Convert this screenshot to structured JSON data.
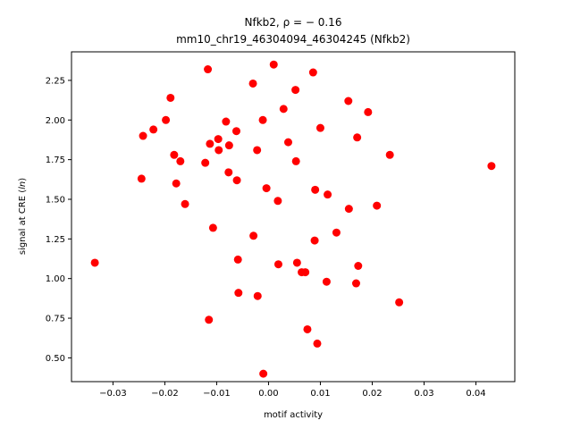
{
  "chart_data": {
    "type": "scatter",
    "title_line1": "Nfkb2, ρ = − 0.16",
    "title_line2": "mm10_chr19_46304094_46304245 (Nfkb2)",
    "xlabel": "motif activity",
    "ylabel_prefix": "signal at CRE (",
    "ylabel_italic": "ln",
    "ylabel_suffix": ")",
    "xlim": [
      -0.038,
      0.0475
    ],
    "ylim": [
      0.35,
      2.43
    ],
    "xticks": [
      -0.03,
      -0.02,
      -0.01,
      0.0,
      0.01,
      0.02,
      0.03,
      0.04
    ],
    "xtick_labels": [
      "−0.03",
      "−0.02",
      "−0.01",
      "0.00",
      "0.01",
      "0.02",
      "0.03",
      "0.04"
    ],
    "yticks": [
      0.5,
      0.75,
      1.0,
      1.25,
      1.5,
      1.75,
      2.0,
      2.25
    ],
    "ytick_labels": [
      "0.50",
      "0.75",
      "1.00",
      "1.25",
      "1.50",
      "1.75",
      "2.00",
      "2.25"
    ],
    "marker_color": "#ff0000",
    "grid": false,
    "x": [
      -0.0335,
      -0.0245,
      -0.0242,
      -0.0222,
      -0.0198,
      -0.0189,
      -0.0182,
      -0.0178,
      -0.017,
      -0.0161,
      -0.0122,
      -0.0117,
      -0.0115,
      -0.0113,
      -0.0107,
      -0.0097,
      -0.0096,
      -0.0082,
      -0.0077,
      -0.0076,
      -0.0062,
      -0.0061,
      -0.0059,
      -0.0058,
      -0.003,
      -0.0029,
      -0.0022,
      -0.0021,
      -0.0011,
      -0.001,
      -0.0004,
      0.001,
      0.0018,
      0.0019,
      0.0029,
      0.0038,
      0.0052,
      0.0053,
      0.0055,
      0.0064,
      0.0071,
      0.0075,
      0.0086,
      0.0089,
      0.009,
      0.0094,
      0.01,
      0.0112,
      0.0114,
      0.0131,
      0.0154,
      0.0155,
      0.0169,
      0.0171,
      0.0173,
      0.0192,
      0.0209,
      0.0234,
      0.0252,
      0.043
    ],
    "y": [
      1.1,
      1.63,
      1.9,
      1.94,
      2.0,
      2.14,
      1.78,
      1.6,
      1.74,
      1.47,
      1.73,
      2.32,
      0.74,
      1.85,
      1.32,
      1.88,
      1.81,
      1.99,
      1.67,
      1.84,
      1.93,
      1.62,
      1.12,
      0.91,
      2.23,
      1.27,
      1.81,
      0.89,
      2.0,
      0.4,
      1.57,
      2.35,
      1.49,
      1.09,
      2.07,
      1.86,
      2.19,
      1.74,
      1.1,
      1.04,
      1.04,
      0.68,
      2.3,
      1.24,
      1.56,
      0.59,
      1.95,
      0.98,
      1.53,
      1.29,
      2.12,
      1.44,
      0.97,
      1.89,
      1.08,
      2.05,
      1.46,
      1.78,
      0.85,
      1.71
    ]
  }
}
